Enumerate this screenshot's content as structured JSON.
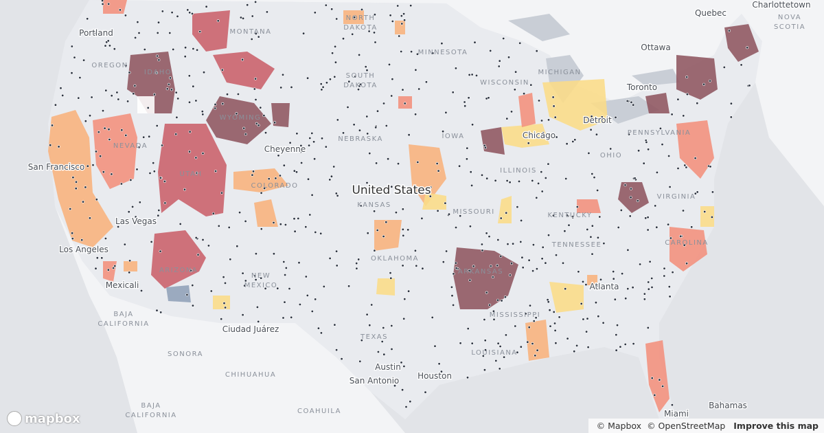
{
  "labels": [
    "Portland",
    "OREGON",
    "IDAHO",
    "MONTANA",
    "NORTH",
    "DAKOTA",
    "MINNESOTA",
    "SOUTH",
    "DAKOTA",
    "WYOMING",
    "WISCONSIN",
    "MICHIGAN",
    "Toronto",
    "Ottawa",
    "Quebec",
    "Charlottetown",
    "NOVA",
    "SCOTIA",
    "NEVADA",
    "UTAH",
    "Cheyenne",
    "NEBRASKA",
    "IOWA",
    "Chicago",
    "Detroit",
    "OHIO",
    "ILLINOIS",
    "PENNSYLVANIA",
    "San Francisco",
    "COLORADO",
    "KANSAS",
    "MISSOURI",
    "KENTUCKY",
    "VIRGINIA",
    "Las Vegas",
    "Los Angeles",
    "ARIZONA",
    "NEW",
    "MEXICO",
    "OKLAHOMA",
    "ARKANSAS",
    "TENNESSEE",
    "CAROLINA",
    "Mexicali",
    "BAJA",
    "CALIFORNIA",
    "MISSISSIPPI",
    "Atlanta",
    "Ciudad Juárez",
    "TEXAS",
    "LOUISIANA",
    "SONORA",
    "CHIHUAHUA",
    "Austin",
    "Houston",
    "San Antonio",
    "BAJA",
    "CALIFORNIA",
    "COAHUILA",
    "Miami",
    "Bahamas"
  ],
  "country_label": "United States",
  "logo": "mapbox",
  "attribution": {
    "mapbox": "© Mapbox",
    "osm": "© OpenStreetMap",
    "improve": "Improve this map"
  }
}
